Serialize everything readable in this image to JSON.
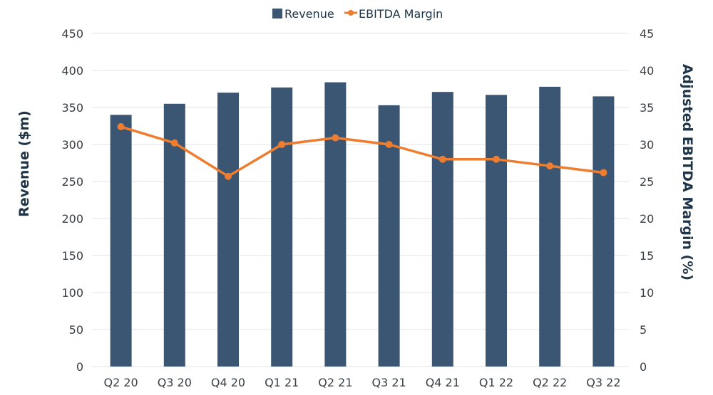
{
  "chart_data": {
    "type": "bar",
    "title": "",
    "categories": [
      "Q2 20",
      "Q3 20",
      "Q4 20",
      "Q1 21",
      "Q2 21",
      "Q3 21",
      "Q4 21",
      "Q1 22",
      "Q2 22",
      "Q3 22"
    ],
    "series": [
      {
        "name": "Revenue",
        "type": "bar",
        "axis": "left",
        "color": "#3a5672",
        "values": [
          340,
          355,
          370,
          377,
          384,
          353,
          371,
          367,
          378,
          365
        ]
      },
      {
        "name": "EBITDA Margin",
        "type": "line",
        "axis": "right",
        "color": "#ee7d2f",
        "values": [
          32.4,
          30.2,
          25.7,
          30.0,
          30.9,
          30.0,
          28.0,
          28.0,
          27.1,
          26.2
        ]
      }
    ],
    "xlabel": "",
    "ylabel": "Revenue ($m)",
    "ylabel_right": "Adjusted EBITDA  Margin (%)",
    "ylim": [
      0,
      450
    ],
    "ylim_right": [
      0,
      45
    ],
    "yticks": [
      0,
      50,
      100,
      150,
      200,
      250,
      300,
      350,
      400,
      450
    ],
    "yticks_right": [
      0,
      5,
      10,
      15,
      20,
      25,
      30,
      35,
      40,
      45
    ],
    "grid": true,
    "legend": "top-center",
    "legend_entries": [
      "Revenue",
      "EBITDA Margin"
    ]
  }
}
